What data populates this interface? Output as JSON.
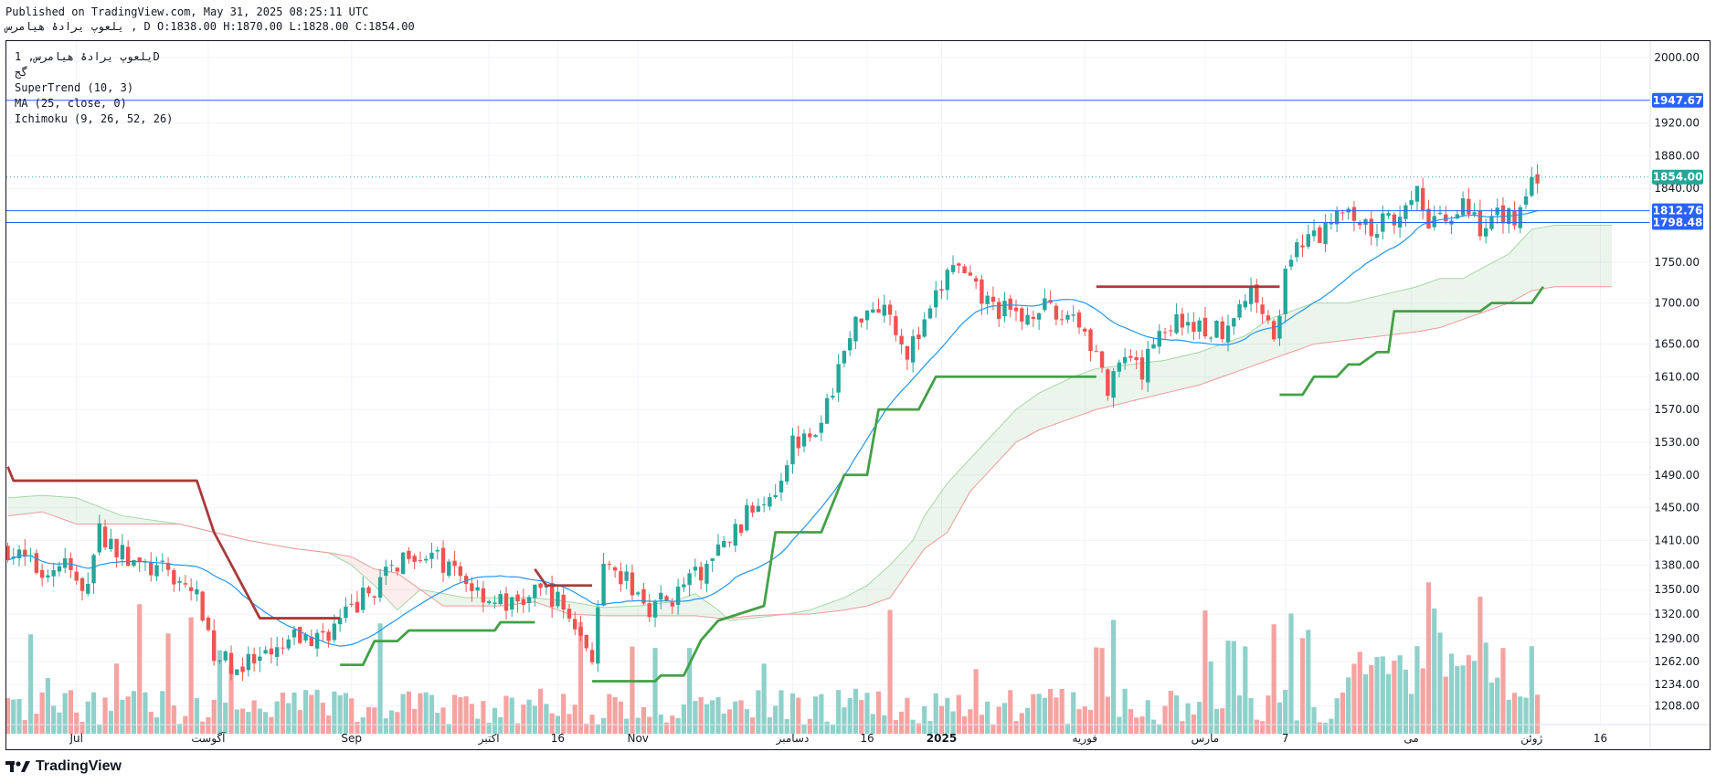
{
  "header": {
    "published": "Published on TradingView.com, May 31, 2025 08:25:11 UTC",
    "symbol_line": "یلعوپ یرادۀ هیامرس , D O:1838.00 H:1870.00 L:1828.00 C:1854.00"
  },
  "legend": {
    "title": "یلعوپ یرادۀ هیامرس, 1D",
    "subtitle": "گج",
    "indicators": [
      "SuperTrend (10, 3)",
      "MA (25, close, 0)",
      "Ichimoku (9, 26, 52, 26)"
    ]
  },
  "brand": {
    "name": "TradingView"
  },
  "colors": {
    "up": "#26a69a",
    "down": "#ef5350",
    "vol_up": "#8fd1ca",
    "vol_down": "#f5a3a1",
    "supertrend_up": "#43a047",
    "supertrend_down": "#a83a3a",
    "ma": "#2196f3",
    "line": "#2962ff",
    "last_price": "#26a69a"
  },
  "chart_data": {
    "type": "candlestick",
    "title": "یلعوپ یرادۀ هیامرس, 1D",
    "ylim": [
      1185,
      2020
    ],
    "y_ticks": [
      2000,
      1920,
      1880,
      1840,
      1750,
      1700,
      1650,
      1610,
      1570,
      1530,
      1490,
      1450,
      1410,
      1380,
      1350,
      1320,
      1290,
      1262,
      1234,
      1208
    ],
    "x_labels": [
      {
        "index": 12,
        "label": "Jul"
      },
      {
        "index": 35,
        "label": "آگوست"
      },
      {
        "index": 60,
        "label": "Sep"
      },
      {
        "index": 84,
        "label": "اکتبر"
      },
      {
        "index": 96,
        "label": "16"
      },
      {
        "index": 110,
        "label": "Nov"
      },
      {
        "index": 137,
        "label": "دسامبر"
      },
      {
        "index": 150,
        "label": "16"
      },
      {
        "index": 163,
        "label": "2025"
      },
      {
        "index": 188,
        "label": "فوریه"
      },
      {
        "index": 209,
        "label": "مارس"
      },
      {
        "index": 223,
        "label": "7"
      },
      {
        "index": 245,
        "label": "می"
      },
      {
        "index": 266,
        "label": "ژوئن"
      },
      {
        "index": 278,
        "label": "16"
      }
    ],
    "price_lines": [
      {
        "value": 1947.67,
        "label": "1947.67"
      },
      {
        "value": 1812.76,
        "label": "1812.76"
      },
      {
        "value": 1798.48,
        "label": "1798.48"
      }
    ],
    "last_price": {
      "value": 1854.0,
      "label": "1854.00"
    },
    "ohlc_anchors": [
      [
        0,
        1400
      ],
      [
        6,
        1370
      ],
      [
        10,
        1385
      ],
      [
        13,
        1340
      ],
      [
        16,
        1420
      ],
      [
        22,
        1380
      ],
      [
        28,
        1370
      ],
      [
        32,
        1350
      ],
      [
        34,
        1325
      ],
      [
        36,
        1270
      ],
      [
        40,
        1255
      ],
      [
        46,
        1265
      ],
      [
        50,
        1290
      ],
      [
        54,
        1290
      ],
      [
        58,
        1310
      ],
      [
        62,
        1340
      ],
      [
        66,
        1365
      ],
      [
        70,
        1400
      ],
      [
        74,
        1390
      ],
      [
        78,
        1370
      ],
      [
        84,
        1340
      ],
      [
        88,
        1330
      ],
      [
        94,
        1350
      ],
      [
        98,
        1320
      ],
      [
        100,
        1290
      ],
      [
        102,
        1272
      ],
      [
        104,
        1370
      ],
      [
        108,
        1360
      ],
      [
        112,
        1330
      ],
      [
        116,
        1340
      ],
      [
        118,
        1355
      ],
      [
        121,
        1370
      ],
      [
        124,
        1395
      ],
      [
        128,
        1430
      ],
      [
        131,
        1460
      ],
      [
        134,
        1475
      ],
      [
        137,
        1530
      ],
      [
        140,
        1550
      ],
      [
        142,
        1545
      ],
      [
        144,
        1600
      ],
      [
        146,
        1640
      ],
      [
        149,
        1690
      ],
      [
        152,
        1700
      ],
      [
        154,
        1690
      ],
      [
        157,
        1640
      ],
      [
        160,
        1670
      ],
      [
        163,
        1720
      ],
      [
        165,
        1750
      ],
      [
        168,
        1720
      ],
      [
        171,
        1700
      ],
      [
        174,
        1690
      ],
      [
        177,
        1680
      ],
      [
        180,
        1700
      ],
      [
        183,
        1680
      ],
      [
        186,
        1690
      ],
      [
        190,
        1640
      ],
      [
        192,
        1590
      ],
      [
        195,
        1630
      ],
      [
        198,
        1610
      ],
      [
        200,
        1660
      ],
      [
        203,
        1675
      ],
      [
        206,
        1680
      ],
      [
        209,
        1665
      ],
      [
        212,
        1670
      ],
      [
        215,
        1700
      ],
      [
        217,
        1710
      ],
      [
        219,
        1700
      ],
      [
        221,
        1660
      ],
      [
        223,
        1730
      ],
      [
        226,
        1780
      ],
      [
        229,
        1780
      ],
      [
        232,
        1820
      ],
      [
        235,
        1810
      ],
      [
        238,
        1790
      ],
      [
        241,
        1800
      ],
      [
        244,
        1820
      ],
      [
        246,
        1840
      ],
      [
        248,
        1790
      ],
      [
        251,
        1800
      ],
      [
        254,
        1820
      ],
      [
        257,
        1790
      ],
      [
        260,
        1810
      ],
      [
        263,
        1800
      ],
      [
        265,
        1830
      ],
      [
        267,
        1854
      ]
    ],
    "candles_count": 268,
    "ma": {
      "name": "MA (25, close, 0)",
      "period": 25
    },
    "supertrend": {
      "name": "SuperTrend (10, 3)",
      "segments": [
        {
          "dir": "down",
          "points": [
            [
              0,
              1500
            ],
            [
              1,
              1483
            ],
            [
              33,
              1483
            ],
            [
              36,
              1420
            ],
            [
              44,
              1315
            ],
            [
              58,
              1315
            ]
          ]
        },
        {
          "dir": "up",
          "points": [
            [
              58,
              1258
            ],
            [
              62,
              1258
            ],
            [
              64,
              1287
            ],
            [
              68,
              1287
            ],
            [
              70,
              1300
            ],
            [
              85,
              1300
            ],
            [
              86,
              1310
            ],
            [
              92,
              1310
            ]
          ]
        },
        {
          "dir": "down",
          "points": [
            [
              92,
              1375
            ],
            [
              94,
              1355
            ],
            [
              102,
              1355
            ]
          ]
        },
        {
          "dir": "up",
          "points": [
            [
              102,
              1238
            ],
            [
              113,
              1238
            ],
            [
              114,
              1245
            ],
            [
              118,
              1245
            ],
            [
              121,
              1288
            ],
            [
              124,
              1312
            ],
            [
              132,
              1330
            ],
            [
              134,
              1420
            ],
            [
              142,
              1420
            ],
            [
              146,
              1490
            ],
            [
              150,
              1490
            ],
            [
              152,
              1570
            ],
            [
              159,
              1570
            ],
            [
              162,
              1610
            ],
            [
              190,
              1610
            ]
          ]
        },
        {
          "dir": "down",
          "points": [
            [
              190,
              1720
            ],
            [
              222,
              1720
            ]
          ]
        },
        {
          "dir": "up",
          "points": [
            [
              222,
              1588
            ],
            [
              226,
              1588
            ],
            [
              228,
              1610
            ],
            [
              232,
              1610
            ],
            [
              234,
              1625
            ],
            [
              236,
              1625
            ],
            [
              239,
              1640
            ],
            [
              241,
              1640
            ],
            [
              242,
              1690
            ],
            [
              257,
              1690
            ],
            [
              259,
              1700
            ],
            [
              266,
              1700
            ],
            [
              268,
              1720
            ]
          ]
        }
      ]
    },
    "ichimoku": {
      "name": "Ichimoku (9, 26, 52, 26)",
      "span_a": [
        [
          0,
          1462
        ],
        [
          6,
          1465
        ],
        [
          12,
          1462
        ],
        [
          20,
          1440
        ],
        [
          30,
          1430
        ],
        [
          36,
          1420
        ],
        [
          42,
          1410
        ],
        [
          50,
          1400
        ],
        [
          56,
          1395
        ],
        [
          60,
          1380
        ],
        [
          64,
          1355
        ],
        [
          68,
          1325
        ],
        [
          72,
          1350
        ],
        [
          76,
          1345
        ],
        [
          80,
          1340
        ],
        [
          86,
          1340
        ],
        [
          92,
          1340
        ],
        [
          98,
          1335
        ],
        [
          104,
          1328
        ],
        [
          110,
          1330
        ],
        [
          116,
          1335
        ],
        [
          120,
          1345
        ],
        [
          124,
          1325
        ],
        [
          126,
          1312
        ],
        [
          130,
          1315
        ],
        [
          136,
          1320
        ],
        [
          140,
          1325
        ],
        [
          146,
          1340
        ],
        [
          150,
          1355
        ],
        [
          154,
          1380
        ],
        [
          158,
          1410
        ],
        [
          160,
          1440
        ],
        [
          164,
          1480
        ],
        [
          168,
          1510
        ],
        [
          172,
          1540
        ],
        [
          176,
          1570
        ],
        [
          180,
          1590
        ],
        [
          186,
          1610
        ],
        [
          190,
          1620
        ],
        [
          196,
          1625
        ],
        [
          202,
          1630
        ],
        [
          208,
          1640
        ],
        [
          212,
          1650
        ],
        [
          216,
          1660
        ],
        [
          220,
          1680
        ],
        [
          224,
          1690
        ],
        [
          228,
          1700
        ],
        [
          234,
          1700
        ],
        [
          240,
          1710
        ],
        [
          246,
          1720
        ],
        [
          250,
          1730
        ],
        [
          254,
          1730
        ],
        [
          258,
          1745
        ],
        [
          262,
          1760
        ],
        [
          266,
          1790
        ],
        [
          270,
          1795
        ],
        [
          280,
          1795
        ]
      ],
      "span_b": [
        [
          0,
          1440
        ],
        [
          6,
          1445
        ],
        [
          12,
          1430
        ],
        [
          20,
          1430
        ],
        [
          30,
          1430
        ],
        [
          36,
          1420
        ],
        [
          42,
          1410
        ],
        [
          50,
          1400
        ],
        [
          56,
          1395
        ],
        [
          60,
          1390
        ],
        [
          64,
          1375
        ],
        [
          68,
          1370
        ],
        [
          72,
          1350
        ],
        [
          76,
          1330
        ],
        [
          80,
          1330
        ],
        [
          86,
          1330
        ],
        [
          92,
          1335
        ],
        [
          98,
          1320
        ],
        [
          104,
          1318
        ],
        [
          110,
          1318
        ],
        [
          116,
          1318
        ],
        [
          120,
          1318
        ],
        [
          124,
          1315
        ],
        [
          126,
          1315
        ],
        [
          130,
          1318
        ],
        [
          136,
          1320
        ],
        [
          140,
          1320
        ],
        [
          146,
          1325
        ],
        [
          150,
          1330
        ],
        [
          154,
          1340
        ],
        [
          158,
          1380
        ],
        [
          160,
          1400
        ],
        [
          164,
          1420
        ],
        [
          168,
          1470
        ],
        [
          172,
          1500
        ],
        [
          176,
          1530
        ],
        [
          180,
          1545
        ],
        [
          186,
          1560
        ],
        [
          190,
          1570
        ],
        [
          196,
          1580
        ],
        [
          202,
          1590
        ],
        [
          208,
          1600
        ],
        [
          212,
          1610
        ],
        [
          216,
          1620
        ],
        [
          220,
          1630
        ],
        [
          224,
          1640
        ],
        [
          228,
          1650
        ],
        [
          234,
          1655
        ],
        [
          240,
          1660
        ],
        [
          246,
          1665
        ],
        [
          250,
          1670
        ],
        [
          254,
          1680
        ],
        [
          258,
          1690
        ],
        [
          262,
          1700
        ],
        [
          266,
          1715
        ],
        [
          270,
          1720
        ],
        [
          280,
          1720
        ]
      ]
    },
    "volume": {
      "max": 2000000,
      "description": "volume histogram bars along the bottom"
    }
  }
}
